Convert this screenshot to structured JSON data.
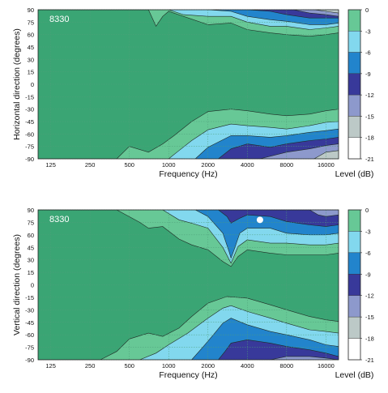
{
  "chart_data": [
    {
      "type": "heatmap",
      "badge": "8330",
      "xlabel": "Frequency (Hz)",
      "ylabel": "Horizontal direction (degrees)",
      "x_scale": "log",
      "xlim": [
        100,
        20000
      ],
      "ylim": [
        -90,
        90
      ],
      "x_ticks": [
        125,
        250,
        500,
        1000,
        2000,
        4000,
        8000,
        16000
      ],
      "x_tick_labels": [
        "125",
        "250",
        "500",
        "1000",
        "2000",
        "4000",
        "8000",
        "16000"
      ],
      "y_ticks": [
        90,
        75,
        60,
        45,
        30,
        15,
        0,
        -15,
        -30,
        -45,
        -60,
        -75,
        -90
      ],
      "y_tick_labels": [
        "90",
        "75",
        "60",
        "45",
        "30",
        "15",
        "0",
        "-15",
        "-30",
        "-45",
        "-60",
        "-75",
        "-90"
      ],
      "grid": true,
      "colorbar": {
        "label": "Level (dB)",
        "levels": [
          0,
          -3,
          -6,
          -9,
          -12,
          -15,
          -18,
          -21
        ],
        "tick_labels": [
          "0",
          "-3",
          "-6",
          "-9",
          "-12",
          "-15",
          "-18",
          "-21"
        ]
      },
      "level_edges": [
        {
          "level": -3,
          "top": [
            [
              100,
              90
            ],
            [
              700,
              90
            ],
            [
              800,
              70
            ],
            [
              900,
              82
            ],
            [
              1000,
              88
            ],
            [
              2000,
              72
            ],
            [
              3000,
              74
            ],
            [
              4000,
              66
            ],
            [
              6000,
              62
            ],
            [
              8000,
              60
            ],
            [
              12000,
              58
            ],
            [
              16000,
              60
            ],
            [
              20000,
              62
            ]
          ],
          "bottom": [
            [
              100,
              -90
            ],
            [
              400,
              -90
            ],
            [
              500,
              -75
            ],
            [
              700,
              -82
            ],
            [
              900,
              -72
            ],
            [
              1100,
              -62
            ],
            [
              1500,
              -45
            ],
            [
              2000,
              -33
            ],
            [
              3000,
              -30
            ],
            [
              4000,
              -32
            ],
            [
              6000,
              -36
            ],
            [
              8000,
              -38
            ],
            [
              12000,
              -36
            ],
            [
              16000,
              -32
            ],
            [
              20000,
              -30
            ]
          ]
        },
        {
          "level": -6,
          "top": [
            [
              1000,
              90
            ],
            [
              1300,
              84
            ],
            [
              2000,
              82
            ],
            [
              3000,
              82
            ],
            [
              4000,
              75
            ],
            [
              6000,
              70
            ],
            [
              8000,
              70
            ],
            [
              12000,
              66
            ],
            [
              16000,
              68
            ],
            [
              20000,
              70
            ]
          ],
          "bottom": [
            [
              1000,
              -90
            ],
            [
              1200,
              -80
            ],
            [
              1500,
              -68
            ],
            [
              2000,
              -55
            ],
            [
              3000,
              -48
            ],
            [
              4000,
              -50
            ],
            [
              6000,
              -52
            ],
            [
              8000,
              -54
            ],
            [
              12000,
              -50
            ],
            [
              16000,
              -46
            ],
            [
              20000,
              -45
            ]
          ]
        },
        {
          "level": -9,
          "top": [
            [
              2000,
              90
            ],
            [
              3000,
              88
            ],
            [
              4000,
              82
            ],
            [
              6000,
              78
            ],
            [
              8000,
              76
            ],
            [
              12000,
              72
            ],
            [
              16000,
              72
            ],
            [
              20000,
              74
            ]
          ],
          "bottom": [
            [
              1600,
              -90
            ],
            [
              2000,
              -76
            ],
            [
              3000,
              -62
            ],
            [
              4000,
              -62
            ],
            [
              6000,
              -64
            ],
            [
              8000,
              -62
            ],
            [
              12000,
              -58
            ],
            [
              16000,
              -56
            ],
            [
              20000,
              -54
            ]
          ]
        },
        {
          "level": -12,
          "top": [
            [
              4000,
              90
            ],
            [
              6000,
              88
            ],
            [
              8000,
              84
            ],
            [
              12000,
              80
            ],
            [
              16000,
              80
            ],
            [
              20000,
              80
            ]
          ],
          "bottom": [
            [
              2400,
              -90
            ],
            [
              3000,
              -78
            ],
            [
              4000,
              -72
            ],
            [
              6000,
              -76
            ],
            [
              8000,
              -72
            ],
            [
              12000,
              -68
            ],
            [
              16000,
              -66
            ],
            [
              20000,
              -64
            ]
          ]
        },
        {
          "level": -15,
          "top": [
            [
              9000,
              90
            ],
            [
              12000,
              86
            ],
            [
              16000,
              84
            ],
            [
              20000,
              82
            ]
          ],
          "bottom": [
            [
              5000,
              -90
            ],
            [
              8000,
              -82
            ],
            [
              12000,
              -78
            ],
            [
              16000,
              -74
            ],
            [
              20000,
              -72
            ]
          ]
        },
        {
          "level": -18,
          "top": [
            [
              13000,
              90
            ],
            [
              16000,
              88
            ],
            [
              20000,
              86
            ]
          ],
          "bottom": [
            [
              13000,
              -90
            ],
            [
              16000,
              -82
            ],
            [
              20000,
              -80
            ]
          ]
        }
      ]
    },
    {
      "type": "heatmap",
      "badge": "8330",
      "xlabel": "Frequency (Hz)",
      "ylabel": "Vertical direction (degrees)",
      "x_scale": "log",
      "xlim": [
        100,
        20000
      ],
      "ylim": [
        -90,
        90
      ],
      "x_ticks": [
        125,
        250,
        500,
        1000,
        2000,
        4000,
        8000,
        16000
      ],
      "x_tick_labels": [
        "125",
        "250",
        "500",
        "1000",
        "2000",
        "4000",
        "8000",
        "16000"
      ],
      "y_ticks": [
        90,
        75,
        60,
        45,
        30,
        15,
        0,
        -15,
        -30,
        -45,
        -60,
        -75,
        -90
      ],
      "y_tick_labels": [
        "90",
        "75",
        "60",
        "45",
        "30",
        "15",
        "0",
        "-15",
        "-30",
        "-45",
        "-60",
        "-75",
        "-90"
      ],
      "grid": true,
      "colorbar": {
        "label": "Level (dB)",
        "levels": [
          0,
          -3,
          -6,
          -9,
          -12,
          -15,
          -18,
          -21
        ],
        "tick_labels": [
          "0",
          "-3",
          "-6",
          "-9",
          "-12",
          "-15",
          "-18",
          "-21"
        ]
      },
      "marker": {
        "x": 5000,
        "y": 78
      },
      "level_edges": [
        {
          "level": -3,
          "top": [
            [
              100,
              90
            ],
            [
              400,
              90
            ],
            [
              600,
              75
            ],
            [
              700,
              68
            ],
            [
              900,
              70
            ],
            [
              1200,
              55
            ],
            [
              1500,
              48
            ],
            [
              2000,
              42
            ],
            [
              2600,
              28
            ],
            [
              3000,
              22
            ],
            [
              3400,
              34
            ],
            [
              4000,
              42
            ],
            [
              6000,
              38
            ],
            [
              8000,
              36
            ],
            [
              12000,
              36
            ],
            [
              16000,
              36
            ],
            [
              20000,
              38
            ]
          ],
          "bottom": [
            [
              100,
              -90
            ],
            [
              300,
              -90
            ],
            [
              400,
              -80
            ],
            [
              500,
              -65
            ],
            [
              700,
              -58
            ],
            [
              900,
              -62
            ],
            [
              1200,
              -52
            ],
            [
              1500,
              -38
            ],
            [
              2000,
              -22
            ],
            [
              2800,
              -14
            ],
            [
              4000,
              -16
            ],
            [
              6000,
              -24
            ],
            [
              8000,
              -30
            ],
            [
              12000,
              -38
            ],
            [
              16000,
              -42
            ],
            [
              20000,
              -44
            ]
          ]
        },
        {
          "level": -6,
          "top": [
            [
              900,
              90
            ],
            [
              1200,
              78
            ],
            [
              1500,
              74
            ],
            [
              2000,
              68
            ],
            [
              2600,
              45
            ],
            [
              3000,
              26
            ],
            [
              3400,
              46
            ],
            [
              4000,
              54
            ],
            [
              6000,
              50
            ],
            [
              8000,
              50
            ],
            [
              12000,
              48
            ],
            [
              16000,
              48
            ],
            [
              20000,
              50
            ]
          ],
          "bottom": [
            [
              600,
              -90
            ],
            [
              800,
              -82
            ],
            [
              1000,
              -72
            ],
            [
              1400,
              -58
            ],
            [
              2000,
              -40
            ],
            [
              2600,
              -28
            ],
            [
              3000,
              -25
            ],
            [
              4000,
              -32
            ],
            [
              6000,
              -40
            ],
            [
              8000,
              -46
            ],
            [
              12000,
              -54
            ],
            [
              16000,
              -56
            ],
            [
              20000,
              -58
            ]
          ]
        },
        {
          "level": -9,
          "top": [
            [
              1600,
              90
            ],
            [
              2000,
              82
            ],
            [
              2600,
              62
            ],
            [
              2900,
              40
            ],
            [
              3000,
              32
            ],
            [
              3200,
              44
            ],
            [
              3500,
              62
            ],
            [
              4000,
              68
            ],
            [
              6000,
              68
            ],
            [
              8000,
              62
            ],
            [
              12000,
              60
            ],
            [
              16000,
              60
            ],
            [
              20000,
              62
            ]
          ],
          "bottom": [
            [
              1500,
              -90
            ],
            [
              1800,
              -76
            ],
            [
              2200,
              -60
            ],
            [
              2600,
              -46
            ],
            [
              3000,
              -40
            ],
            [
              4000,
              -48
            ],
            [
              6000,
              -56
            ],
            [
              8000,
              -60
            ],
            [
              12000,
              -66
            ],
            [
              16000,
              -72
            ],
            [
              20000,
              -74
            ]
          ]
        },
        {
          "level": -12,
          "top": [
            [
              2400,
              90
            ],
            [
              2800,
              82
            ],
            [
              3000,
              74
            ],
            [
              3500,
              80
            ],
            [
              4000,
              84
            ],
            [
              6000,
              82
            ],
            [
              8000,
              76
            ],
            [
              12000,
              72
            ],
            [
              16000,
              70
            ],
            [
              20000,
              72
            ]
          ],
          "bottom": [
            [
              2400,
              -90
            ],
            [
              2700,
              -80
            ],
            [
              3000,
              -70
            ],
            [
              4000,
              -66
            ],
            [
              6000,
              -70
            ],
            [
              8000,
              -74
            ],
            [
              12000,
              -78
            ],
            [
              16000,
              -82
            ],
            [
              20000,
              -86
            ]
          ]
        },
        {
          "level": -15,
          "top": [
            [
              12000,
              90
            ],
            [
              14000,
              84
            ],
            [
              16000,
              82
            ],
            [
              20000,
              84
            ]
          ],
          "bottom": [
            [
              6000,
              -90
            ],
            [
              8000,
              -86
            ],
            [
              12000,
              -86
            ],
            [
              16000,
              -88
            ],
            [
              20000,
              -90
            ]
          ]
        }
      ]
    }
  ]
}
